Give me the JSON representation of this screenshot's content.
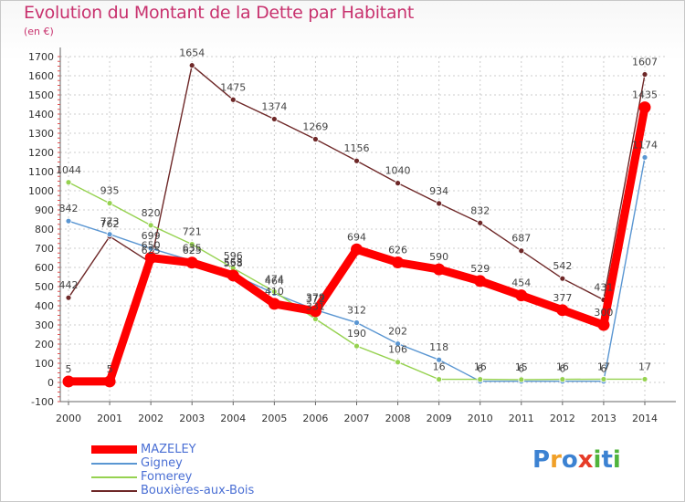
{
  "chart_data": {
    "type": "line",
    "title": "Evolution du Montant de la Dette par Habitant",
    "subtitle": "(en €)",
    "x": [
      "2000",
      "2001",
      "2002",
      "2003",
      "2004",
      "2005",
      "2006",
      "2007",
      "2008",
      "2009",
      "2010",
      "2011",
      "2012",
      "2013",
      "2014"
    ],
    "ylim": [
      -100,
      1700
    ],
    "yticks": [
      -100,
      0,
      100,
      200,
      300,
      400,
      500,
      600,
      700,
      800,
      900,
      1000,
      1100,
      1200,
      1300,
      1400,
      1500,
      1600,
      1700
    ],
    "grid": true,
    "legend_position": "bottom-left",
    "series": [
      {
        "name": "MAZELEY",
        "color": "#ff0000",
        "values": [
          5,
          5,
          650,
          625,
          558,
          410,
          372,
          694,
          626,
          590,
          529,
          454,
          377,
          300,
          1435
        ],
        "labels": [
          "5",
          "5",
          "650",
          "625",
          "558",
          "410",
          "372",
          "694",
          "626",
          "590",
          "529",
          "454",
          "377",
          "300",
          "1435"
        ]
      },
      {
        "name": "Gigney",
        "color": "#5a96d2",
        "values": [
          842,
          773,
          699,
          635,
          563,
          464,
          379,
          312,
          202,
          118,
          6,
          6,
          6,
          6,
          1174
        ],
        "labels": [
          "842",
          "773",
          "699",
          "635",
          "563",
          "464",
          "379",
          "312",
          "202",
          "118",
          "6",
          "6",
          "6",
          "6",
          "1174"
        ]
      },
      {
        "name": "Fomerey",
        "color": "#96d250",
        "values": [
          1044,
          935,
          820,
          721,
          596,
          474,
          331,
          190,
          106,
          16,
          16,
          15,
          16,
          17,
          17
        ],
        "labels": [
          "1044",
          "935",
          "820",
          "721",
          "596",
          "474",
          "331",
          "190",
          "106",
          "16",
          "16",
          "15",
          "16",
          "17",
          "17"
        ]
      },
      {
        "name": "Bouxières-aux-Bois",
        "color": "#6e2828",
        "values": [
          442,
          762,
          625,
          1654,
          1475,
          1374,
          1269,
          1156,
          1040,
          934,
          832,
          687,
          542,
          431,
          1607
        ],
        "labels": [
          "442",
          "762",
          "625",
          "1654",
          "1475",
          "1374",
          "1269",
          "1156",
          "1040",
          "934",
          "832",
          "687",
          "542",
          "431",
          "1607"
        ]
      }
    ]
  },
  "branding": {
    "logo_letters": [
      "P",
      "r",
      "o",
      "x",
      "i",
      "t",
      "i"
    ],
    "logo_colors": [
      "#3c82d2",
      "#f0a028",
      "#3c82d2",
      "#e63c28",
      "#50b43c",
      "#3c82d2",
      "#50b43c"
    ]
  }
}
